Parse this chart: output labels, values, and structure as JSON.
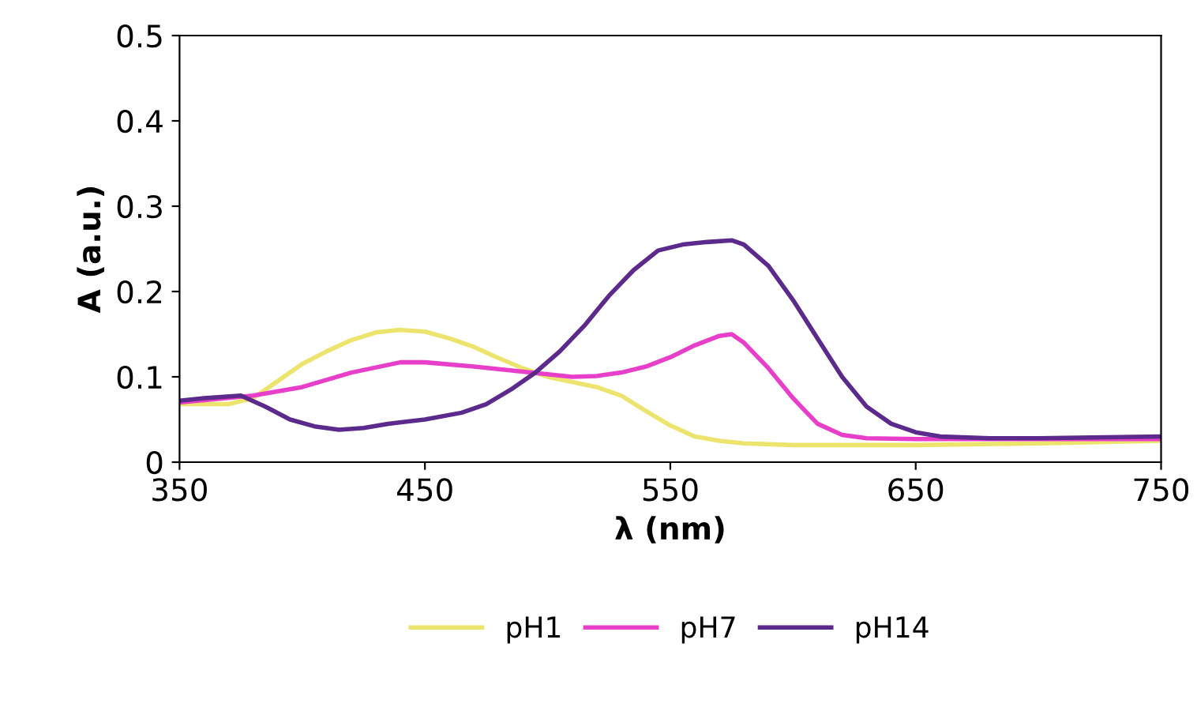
{
  "chart_data": {
    "type": "line",
    "xlabel": "λ (nm)",
    "ylabel": "A (a.u.)",
    "xlim": [
      350,
      750
    ],
    "xticks": [
      350,
      450,
      550,
      650,
      750
    ],
    "ylim": [
      0,
      0.5
    ],
    "yticks": [
      0,
      0.1,
      0.2,
      0.3,
      0.4,
      0.5
    ],
    "grid": false,
    "legend": "bottom",
    "marker": "none",
    "line_style": "solid",
    "series": [
      {
        "name": "pH1",
        "color": "#ece46c",
        "x": [
          350,
          370,
          380,
          390,
          400,
          410,
          420,
          430,
          440,
          450,
          460,
          470,
          480,
          490,
          500,
          510,
          520,
          530,
          540,
          550,
          560,
          570,
          580,
          600,
          650,
          700,
          750
        ],
        "values": [
          0.068,
          0.068,
          0.075,
          0.095,
          0.115,
          0.13,
          0.143,
          0.152,
          0.155,
          0.153,
          0.145,
          0.135,
          0.122,
          0.11,
          0.1,
          0.094,
          0.088,
          0.078,
          0.06,
          0.043,
          0.03,
          0.025,
          0.022,
          0.02,
          0.02,
          0.022,
          0.025
        ]
      },
      {
        "name": "pH7",
        "color": "#e83fcb",
        "x": [
          350,
          380,
          400,
          420,
          440,
          450,
          470,
          490,
          510,
          520,
          530,
          540,
          550,
          560,
          570,
          575,
          580,
          590,
          600,
          610,
          620,
          630,
          650,
          700,
          750
        ],
        "values": [
          0.07,
          0.078,
          0.088,
          0.105,
          0.117,
          0.117,
          0.112,
          0.106,
          0.1,
          0.101,
          0.105,
          0.112,
          0.123,
          0.137,
          0.148,
          0.15,
          0.14,
          0.11,
          0.075,
          0.045,
          0.032,
          0.028,
          0.027,
          0.027,
          0.027
        ]
      },
      {
        "name": "pH14",
        "color": "#5b2a8c",
        "x": [
          350,
          360,
          375,
          385,
          395,
          405,
          415,
          425,
          435,
          450,
          465,
          475,
          485,
          495,
          505,
          515,
          525,
          535,
          545,
          555,
          565,
          575,
          580,
          590,
          600,
          610,
          620,
          630,
          640,
          650,
          660,
          680,
          700,
          750
        ],
        "values": [
          0.072,
          0.075,
          0.078,
          0.065,
          0.05,
          0.042,
          0.038,
          0.04,
          0.045,
          0.05,
          0.058,
          0.068,
          0.085,
          0.105,
          0.13,
          0.16,
          0.195,
          0.225,
          0.248,
          0.255,
          0.258,
          0.26,
          0.255,
          0.23,
          0.19,
          0.145,
          0.1,
          0.065,
          0.045,
          0.035,
          0.03,
          0.028,
          0.028,
          0.03
        ]
      }
    ]
  }
}
